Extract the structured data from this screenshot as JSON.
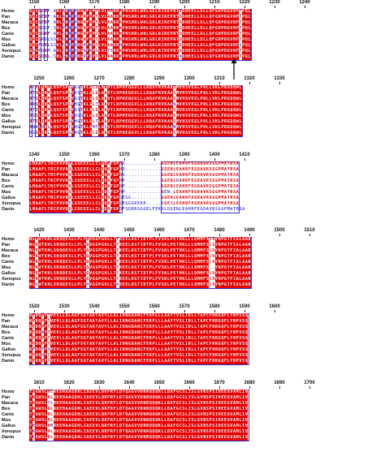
{
  "figure": {
    "species": [
      "Homo",
      "Pan",
      "Macaca",
      "Bos",
      "Canis",
      "Mus",
      "Gallus",
      "Xenopus",
      "Danio"
    ],
    "blocks": [
      {
        "ticks": [
          "1150",
          "1160",
          "1170",
          "1180",
          "1190",
          "1200",
          "1210",
          "1220",
          "1230",
          "1240"
        ],
        "rows": [
          "SACSENF.AHLAHAPHHGKFRPTLVLAARRKPHSHRLWHLGDLRIREPRTSDHEELLDLLQFGHPDGVRFTPQL",
          "SACSENF.AHLAHAPHHGKFRPTLVLAARRKPHSHRLWHLGDLRIREPRTSDHEELLDLLQFGHPDGVRFTPQL",
          "SACSENF.AHLAHTPHHGKFRPTLVLAARRKPHSHRLWHLGDLRIREPRTSDHEELLDLLQFGHPDGVRFTPQL",
          "SACSGSF.SHLPHAPHHGKFRPTLVLAARRKPHSHRLWHLGDLRIREPRTSDHEELLDLLQFGHPDGVRFTPQL",
          "SACSGNF.AHLSHAPHHGKFRPTLVLAARRKPHSHRLWHLGDLRIREPRTSDHEELLDLLQFGHPDGVRFTPQL",
          "SACSRDLSSHLGHAPQHGKFRPTLVLAARRKPHSHRLWHLGDLRIREPRTSDHEELLDLLQFGHPDGVRFTPQL",
          "SACPGNLSSHLSHTPQHGRFKPTLVLAARRRPHSHRLWHLGDLRIREPRTSDHEELLDLLQFGHPDGVRFSPQL",
          "SGCPGNM.AHLSHSPQHGRFKPSLVLTSRRKPHSHRLWHLGDLRIREPRTSDHEELLDLLQFGHPDGVRFTPQL",
          "SACSQNL.SHLGHSPQHGRFKPTLVLAARRKPHSHRLWHLGDLRIREPRTADHEELLDLLQFGHPDGVRFTPQL"
        ]
      },
      {
        "ticks": [
          "1250",
          "1260",
          "1270",
          "1280",
          "1290",
          "1300",
          "1310",
          "1320",
          "1330"
        ],
        "rows": [
          "RTSLIKMLQSFSPCYQSTKLGLSLAAVTLRPHEQGVLLLRQAFRVKAASMVHSVEGLPHLLVKLPRGQQWL",
          "RTSLIKMLQSFSPCYQSTKLGLSLAAVTLRPHEQGVLLLRQAFRVKAASMVHSVEGLPHLLVKLPRGQQWL",
          "RTSLIKMLQSFSPCYQSTKLGLSLAAVTLRPHEQGVLLLRQAFRVKAASMVHSVEGLPHLLVKLPRGQQWL",
          "RNSLIKMLQSFSPCYHGTKLGLTLAAVTLRPHEQGVLLLRQAFRVKAANMVHSVEGLPHLLVKLPRGQQWL",
          "RTSLIKMLQSFSPCYQSTKLGLSLAAVTLRPHEQGVLLLRQAFRVKAASMVHSVEGLPHLLVKLPRGQQWL",
          "RSSLIKVLQSFSPCYQGSKLGLSLAAVTLRPHEQGVLLLRQAFRVKAASMVHSVEGLPHLLVKLPRGQQWL",
          "RTSLIKMLQSFSPSYHGTKLGLTLAAVTLRPHEQGVLLLRQAFRVKAASMVHSVEGLPHLLVKLPRGQQWL",
          "RNALVKLLQSFSPTYHGTKLGMTLASVTLRPHEQGVLLLRQAFRVKAANMVHSVEGLPHLLVKLPRGQQWL",
          "KSSLIKLLQSFSPSYHGTKLGLSLAAVTLRPHEQGVLLLRQAFRVKAASMVHSVEGLPHLLVKLPRGQQWL"
        ]
      },
      {
        "ticks": [
          "1340",
          "1350",
          "1360",
          "1370",
          "1380",
          "1390",
          "1400",
          "1410"
        ],
        "rows": [
          "LMAAFLTRCPVVNQLSSEEELLCLIQNFGPHS............GGENLEAHRFEGDAVRSGGPMATRSA",
          "LMAAFLTRCPVVNQLSSEEELLCLIQNFGPHS............GGENLEAHRFEGDAVRSGGPMATRSA",
          "LMAAFLTRCPVVNQLSSEEELLCLIQNFGPHS............GGENLEAHRFEGDAVRSGGPMATRSA",
          "LMAAFLTRCPVVNQLSSEEELLCLIQNFGPHP............GGENLDAHRFEGDAVRSGGPMATRSA",
          "LMAAFLTRCPVVNQLSSEEELLCLIQNFGPHP............GGENLEAHRFEGDAVRSGGPMATRSA",
          "LMAAFLTRCPVVNQLSSEEELLCLIQSFGPHP............GEN.LEAHRFEGDAVRSGGPMATRSA",
          "LMAAFLTRCPVVNQLSSEEELLCLIQNFGPSEGG..........GGENLEAHRFEGDAVRSGGPMATRSA",
          "LMAAFLTRCPVVNELSSEEELLCLIQNFGPSEGGGDEKR.....VGESLEAHRFEGDAVRSGGPMATRSA",
          "LMAAFLTRCPVVNQLSSEEELLCLLQNFGPDFSQRRSGGELFEKVLDGENLEAHRFEGDAVRSGGPMATRSA"
        ]
      },
      {
        "ticks": [
          "1420",
          "1430",
          "1440",
          "1450",
          "1460",
          "1470",
          "1480",
          "1490",
          "1500",
          "1510"
        ],
        "rows": [
          "NLRWTKHLSRQQESLLPLYQVGGPGHLLTTKEELKGTIDTPLFVSKLPETHKLLLQMMFSLVYNPGTFIALAAR",
          "NLRWTKHLSRQQESLLPLYQVGGPGHLLTTKEELKGTIDTPLFVSKLPETHKLLLQMMFSLVYNPGTFIALAAR",
          "NLRWTKHLSRQQESLLPLYQVGGPGHLLTTKEELKGTIDTPLFVSKLPETHKLLLQMMFSLVYNPGTFIALAAR",
          "NLRWTKHLSRQQESLLPLYQVGGPGHLLTTKEELKGTIDTPLFVSKLPETHKLLLQMMFSLVYNPGTFIALAAR",
          "NLRWTKHLSRQQESLLPLYQVGGPGHLLTTKEELKGTIDTPLFVSKLPETHKLLLQMMFSLVYNPGTFIALAAR",
          "NLRWTKHLSRQQESLLPLYQVGGPGHLLTTKEELKGTIDTPLFVSKLPETHKLLLQMMFS..YNPGTFIALAAR",
          "NLRWTKHLSRQQESLLPLYQVGGPGHLLTTKEELKGTIDTPLFVSKLPETHKLLLQMMFSLVYNPGTFIALAAR",
          "NLRWTKHLSRQQESLLPLYQVGGPGHLLTTKEELKGTIDTPLFVSKLPETHKLLLQMMFSLVYNPGTFIALAAR",
          "NLKWTKHLSRQQESLLPLYHVGGPGHLLTAKEELKGTIDTPLFVSKLPETHKLLLQMMFSLVYNPGTFIALAAR"
        ]
      },
      {
        "ticks": [
          "1520",
          "1530",
          "1540",
          "1550",
          "1560",
          "1570",
          "1580",
          "1590",
          "1600"
        ],
        "rows": [
          "KYDQPFTVEVLLQLAGFSGTAKTAVYLLALIHNGDANCFEKPLLLAAYTVSLIDLLTAPCFHRGQFLYRPVSS",
          "KYDQPFTVEVLLQLAGFSGTAKTAVYLLALIHNGDANCFEKPLLLAAYTVSLIDLLTAPCFHRGQFLYRPVSS",
          "KYDQPFTVEVLLQLAGFSGTAKTAVYLLALIHNGDANCFEKPLLLAAYTVSLIDLLTAPCFHRGQFLYRPVSS",
          "KYDQAFTVEVLLQLAGFSGTAKTAVYLLALIHNGDANCFEKPLLLAAYTVSLIDLLTAPCFHRGQFLYRPVSS",
          "KYDQPFTVEVLLQLAGFSGTAKTAVYLLALIHNGDANCFEKPLLLAAYTVSLIDLLTAPCFHRGQFLYRPVSS",
          "KYDQPFTVEVLLQLAGFSGTAKTAVYLLALIHNGDANCFEKPLLLAAYTVSLIDLLTAPCFHRGQFLYRPVSS",
          "KFDQTFSVEVLLQLAGFSGTAKTAVYLLALIHNGDANCFEKPLLLAAYTVSLIDLLTAPCFHRGQFLYRPVSS",
          "KYDQSFTVEVLLQLAGFSGTAKTAVYLLALIHNGDANCFEKPLLLAAYTVSLIDLLTAPCFHRGQFLYRPVSS",
          "KYDQPFTVEVLLQLAGFSGTAKTAVYLLALIHNGDANCFEKPLLLAAYTVSLIDLLTAPCFHRGQFLYRPVSS"
        ]
      },
      {
        "ticks": [
          "1610",
          "1620",
          "1630",
          "1640",
          "1650",
          "1660",
          "1670",
          "1680",
          "1690",
          "1700"
        ],
        "rows": [
          "TRGWSLHLRKEHAAGDHLIAEEVLQRFRFLDTQAGVVDNRQQQKLLDAFGCSLISLGVNSPSIHEEGVAMLIV",
          "TRGWSLHLRKEHAAGDHLIAEEVLQRFRFLDTQAGVVDNRQQQKLLDAFGCSLISLGVNSPSIHEEGVAMLIV",
          "TRGWSLYLRKEHAAGDHLIAEEVLQRFRFLDTQAGVVDNRQQQKLLDAFGCSLISLGVNSPSIHEEGVAMLIV",
          "TRGWSLHLRKEHAAGDHLIAEEVLQRFRFLDTQAGVVDNRQQQKLLDAFGCSLISLGVNSPSIHEEGVAMLIV",
          "TRGWSLHLRKEHAAGDHLIAEEVLQRFRFLDTQAGVVDNRQQQKLLDAFGCSLISLGVNSPSIHEEGVAMLIV",
          "TRGWSLHLRKEHAAGDHLIAEEVLQRFRFLDTQAGVVDNRQQQKLLDAFGCSLISLGVNSPSIHEEGVAMLIV",
          "TKGWSLHMRKEHAAGDHLIAEEVLQRFRFLDTQAGVVDNRQQQKLLDAFGCSLISLGVNSPSIHEEGVAMLIV",
          "TKGWSLHLRKEHAAGDHLIAEEVLQRFRFLDTQAGVVDNRQQQKLLDAFGCSLISLGVNSPSIHEEGVAMLIV",
          "TKGWSLHLRKEHAAGDHLIAEEVLQRFRFLDTQAGVVDNRQQQKLLDAFGCSLISLGVNSPSIHEEGVAMLIV"
        ]
      }
    ],
    "colors": {
      "conserved_bg": "#e60000",
      "conserved_fg": "#ffffff",
      "similar_fg": "#e60000",
      "other_fg": "#0000cc",
      "frame": "#3333cc"
    },
    "marker_icon": "up-arrow-icon"
  }
}
